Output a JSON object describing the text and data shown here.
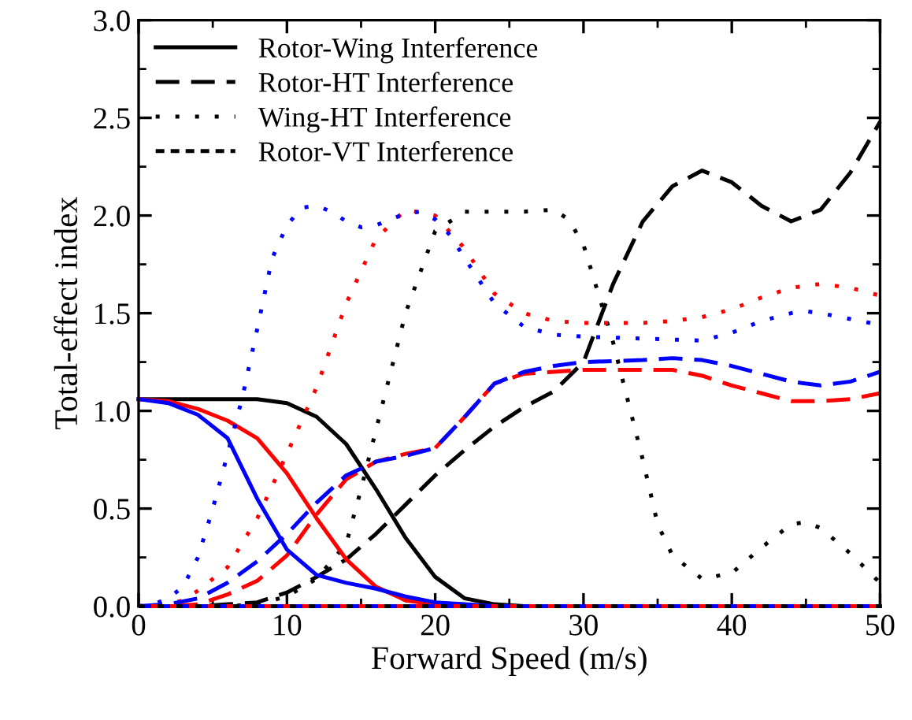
{
  "chart_data": {
    "type": "line",
    "xlabel": "Forward Speed (m/s)",
    "ylabel": "Total-effect index",
    "xlim": [
      0,
      50
    ],
    "xticks": [
      0,
      10,
      20,
      30,
      40,
      50
    ],
    "ylim": [
      0,
      3
    ],
    "yticks": [
      {
        "value": 0,
        "label": "0.0"
      },
      {
        "value": 0.5,
        "label": "0.5"
      },
      {
        "value": 1,
        "label": "1.0"
      },
      {
        "value": 1.5,
        "label": "1.5"
      },
      {
        "value": 2,
        "label": "2.0"
      },
      {
        "value": 2.5,
        "label": "2.5"
      },
      {
        "value": 3,
        "label": "3.0"
      }
    ],
    "grid": false,
    "legend": "top left",
    "marker": "none",
    "series": [
      {
        "name": "Rotor-Wing Interference",
        "color": "#000000",
        "line_style": "solid",
        "x": [
          0,
          8,
          10,
          12,
          14,
          16,
          18,
          20,
          22,
          24,
          26,
          50
        ],
        "values": [
          1.06,
          1.06,
          1.04,
          0.97,
          0.83,
          0.6,
          0.35,
          0.15,
          0.04,
          0.01,
          0,
          0
        ]
      },
      {
        "name": "Rotor-HT Interference",
        "color": "#000000",
        "line_style": "dashed",
        "x": [
          0,
          4,
          6,
          8,
          10,
          12,
          14,
          16,
          18,
          20,
          22,
          24,
          26,
          28,
          30,
          32,
          34,
          36,
          38,
          40,
          42,
          44,
          46,
          48,
          50
        ],
        "values": [
          0,
          0,
          0.01,
          0.02,
          0.07,
          0.15,
          0.24,
          0.37,
          0.52,
          0.67,
          0.8,
          0.92,
          1.02,
          1.1,
          1.25,
          1.65,
          1.97,
          2.15,
          2.23,
          2.17,
          2.05,
          1.97,
          2.03,
          2.22,
          2.48
        ]
      },
      {
        "name": "Wing-HT Interference",
        "color": "#000000",
        "line_style": "dotted",
        "x": [
          0,
          6,
          8,
          10,
          12,
          14,
          15,
          16,
          18,
          20,
          22,
          24,
          26,
          28,
          29,
          30,
          32,
          34,
          35,
          36,
          38,
          40,
          42,
          44,
          45,
          46,
          48,
          50
        ],
        "values": [
          0,
          0,
          0.01,
          0.05,
          0.14,
          0.32,
          0.6,
          0.9,
          1.5,
          1.92,
          2.02,
          2.02,
          2.02,
          2.03,
          1.98,
          1.85,
          1.35,
          0.75,
          0.42,
          0.26,
          0.14,
          0.17,
          0.3,
          0.42,
          0.43,
          0.4,
          0.27,
          0.12
        ]
      },
      {
        "name": "Rotor-VT Interference",
        "color": "#000000",
        "line_style": "short-dashed",
        "x": [
          0,
          10,
          20,
          30,
          40,
          50
        ],
        "values": [
          0,
          0,
          0,
          0,
          0,
          0
        ]
      },
      {
        "color": "#ff0000",
        "line_style": "solid",
        "x": [
          0,
          2,
          4,
          6,
          8,
          10,
          12,
          14,
          16,
          18,
          20,
          22,
          50
        ],
        "values": [
          1.06,
          1.05,
          1.01,
          0.95,
          0.86,
          0.68,
          0.45,
          0.24,
          0.1,
          0.03,
          0.01,
          0,
          0
        ]
      },
      {
        "color": "#ff0000",
        "line_style": "dashed",
        "x": [
          0,
          2,
          4,
          6,
          8,
          10,
          12,
          14,
          16,
          18,
          20,
          22,
          24,
          26,
          28,
          30,
          34,
          36,
          38,
          40,
          42,
          44,
          46,
          48,
          50
        ],
        "values": [
          0,
          0,
          0.01,
          0.06,
          0.13,
          0.26,
          0.47,
          0.65,
          0.74,
          0.78,
          0.81,
          0.97,
          1.14,
          1.19,
          1.2,
          1.21,
          1.21,
          1.21,
          1.18,
          1.13,
          1.09,
          1.05,
          1.05,
          1.06,
          1.09
        ]
      },
      {
        "color": "#ff0000",
        "line_style": "dotted",
        "x": [
          0,
          2,
          3,
          4,
          6,
          8,
          10,
          12,
          14,
          16,
          18,
          20,
          22,
          24,
          26,
          28,
          30,
          34,
          36,
          38,
          40,
          42,
          44,
          46,
          48,
          50
        ],
        "values": [
          0,
          0.01,
          0.03,
          0.08,
          0.2,
          0.45,
          0.78,
          1.12,
          1.55,
          1.88,
          2.03,
          2.0,
          1.83,
          1.6,
          1.5,
          1.46,
          1.45,
          1.45,
          1.46,
          1.48,
          1.52,
          1.58,
          1.63,
          1.65,
          1.63,
          1.59
        ]
      },
      {
        "color": "#ff0000",
        "line_style": "short-dashed",
        "x": [
          0,
          10,
          20,
          30,
          40,
          50
        ],
        "values": [
          0,
          0,
          0,
          0,
          0,
          0
        ]
      },
      {
        "color": "#0000ff",
        "line_style": "solid",
        "x": [
          0,
          2,
          4,
          6,
          8,
          10,
          12,
          14,
          16,
          18,
          20,
          22,
          24,
          50
        ],
        "values": [
          1.06,
          1.04,
          0.98,
          0.86,
          0.55,
          0.29,
          0.16,
          0.12,
          0.09,
          0.05,
          0.02,
          0.01,
          0,
          0
        ]
      },
      {
        "color": "#0000ff",
        "line_style": "dashed",
        "x": [
          0,
          2,
          4,
          6,
          8,
          10,
          12,
          14,
          16,
          18,
          20,
          22,
          24,
          26,
          28,
          30,
          34,
          36,
          38,
          40,
          42,
          44,
          46,
          48,
          50
        ],
        "values": [
          0,
          0.01,
          0.04,
          0.12,
          0.23,
          0.37,
          0.53,
          0.67,
          0.74,
          0.77,
          0.81,
          0.97,
          1.14,
          1.2,
          1.23,
          1.25,
          1.26,
          1.27,
          1.26,
          1.23,
          1.19,
          1.15,
          1.13,
          1.15,
          1.2
        ]
      },
      {
        "color": "#0000ff",
        "line_style": "dotted",
        "x": [
          0,
          1,
          2,
          3,
          4,
          5,
          6,
          7,
          8,
          9,
          10,
          11,
          12,
          13,
          14,
          15,
          16,
          17,
          18,
          19,
          20,
          21,
          22,
          24,
          26,
          28,
          30,
          34,
          38,
          40,
          42,
          44,
          45,
          46,
          48,
          50
        ],
        "values": [
          0,
          0.01,
          0.04,
          0.1,
          0.25,
          0.5,
          0.78,
          1.07,
          1.42,
          1.78,
          1.95,
          2.04,
          2.05,
          2.02,
          1.97,
          1.94,
          1.95,
          1.98,
          2.01,
          2.02,
          1.98,
          1.9,
          1.78,
          1.55,
          1.43,
          1.39,
          1.38,
          1.37,
          1.36,
          1.4,
          1.46,
          1.5,
          1.51,
          1.5,
          1.47,
          1.44
        ]
      },
      {
        "color": "#0000ff",
        "line_style": "short-dashed",
        "x": [
          0,
          10,
          20,
          30,
          40,
          50
        ],
        "values": [
          0,
          0,
          0,
          0,
          0,
          0
        ]
      }
    ]
  }
}
